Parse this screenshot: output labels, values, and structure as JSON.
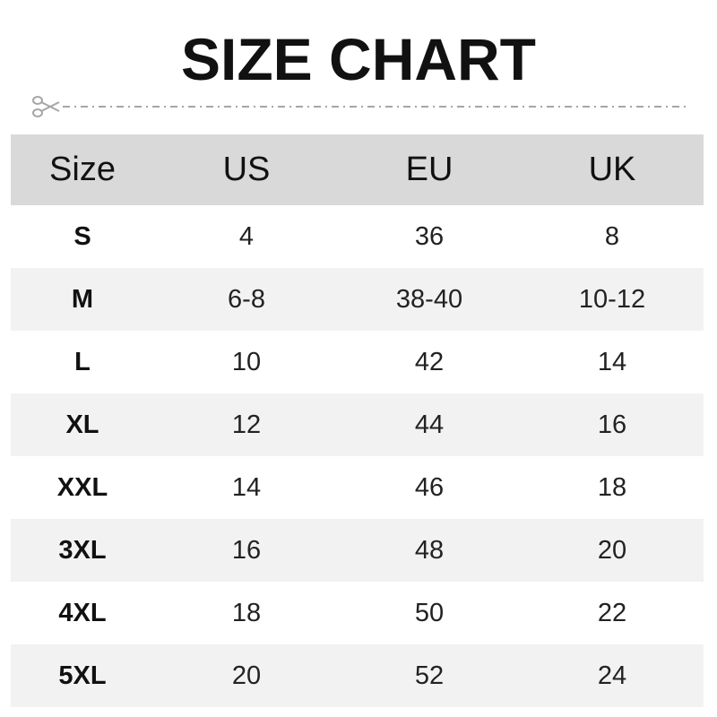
{
  "title": "SIZE CHART",
  "icons": {
    "cut_line": "scissors-icon"
  },
  "table": {
    "headers": [
      "Size",
      "US",
      "EU",
      "UK"
    ],
    "rows": [
      [
        "S",
        "4",
        "36",
        "8"
      ],
      [
        "M",
        "6-8",
        "38-40",
        "10-12"
      ],
      [
        "L",
        "10",
        "42",
        "14"
      ],
      [
        "XL",
        "12",
        "44",
        "16"
      ],
      [
        "XXL",
        "14",
        "46",
        "18"
      ],
      [
        "3XL",
        "16",
        "48",
        "20"
      ],
      [
        "4XL",
        "18",
        "50",
        "22"
      ],
      [
        "5XL",
        "20",
        "52",
        "24"
      ]
    ]
  },
  "colors": {
    "header_bg": "#d9d9d9",
    "alt_row_bg": "#f2f2f2",
    "line": "#a6a6a6"
  }
}
